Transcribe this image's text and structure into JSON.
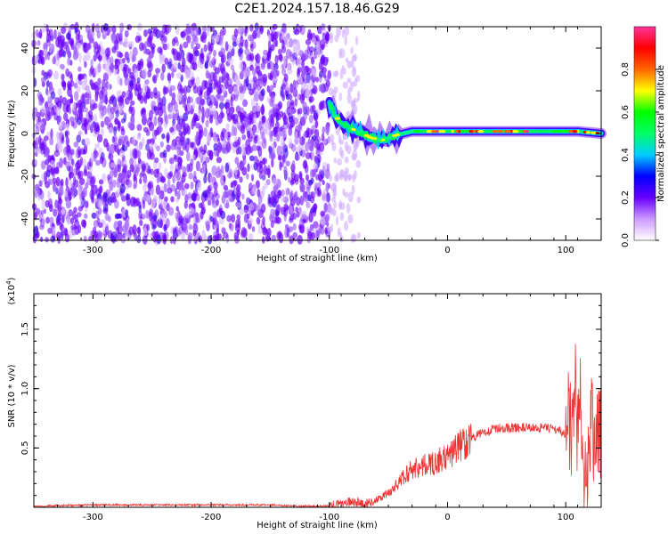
{
  "title": "C2E1.2024.157.18.46.G29",
  "chart_data": [
    {
      "type": "heatmap",
      "xlabel": "Height of straight line (km)",
      "ylabel": "Frequency (Hz)",
      "xlim": [
        -350,
        130
      ],
      "ylim": [
        -50,
        50
      ],
      "xticks": [
        -300,
        -200,
        -100,
        0,
        100
      ],
      "yticks": [
        -40,
        -20,
        0,
        20,
        40
      ],
      "colorbar": {
        "label": "Normalized spectral amplitude",
        "range": [
          0.0,
          1.0
        ],
        "ticks": [
          0.0,
          0.2,
          0.4,
          0.6,
          0.8
        ],
        "tick_labels": [
          "0.0",
          "0.2",
          "0.4",
          "0.6",
          "0.8"
        ],
        "colormap": [
          "#ffffff",
          "#cc99ff",
          "#6600ff",
          "#0000ff",
          "#00ccff",
          "#00ff66",
          "#00ff00",
          "#ffff00",
          "#ff6600",
          "#ff0000",
          "#ff3399"
        ]
      },
      "regions": [
        {
          "x_range": [
            -350,
            -100
          ],
          "f_range": [
            -50,
            50
          ],
          "amplitude": [
            0.0,
            0.15
          ],
          "description_level": "noise"
        },
        {
          "x_range": [
            -100,
            -75
          ],
          "f_range": [
            -50,
            50
          ],
          "amplitude": [
            0.0,
            0.05
          ],
          "description_level": "sparse"
        },
        {
          "x_range": [
            -100,
            130
          ],
          "f_range": [
            -5,
            5
          ],
          "amplitude": [
            0.3,
            1.0
          ],
          "description_level": "carrier"
        }
      ],
      "carrier_center_hz": [
        {
          "x": -100,
          "f": 14
        },
        {
          "x": -95,
          "f": 8
        },
        {
          "x": -85,
          "f": 3
        },
        {
          "x": -75,
          "f": 1
        },
        {
          "x": -65,
          "f": -2
        },
        {
          "x": -55,
          "f": -3
        },
        {
          "x": -45,
          "f": -1
        },
        {
          "x": -30,
          "f": 1
        },
        {
          "x": -15,
          "f": 1
        },
        {
          "x": 0,
          "f": 1
        },
        {
          "x": 30,
          "f": 1
        },
        {
          "x": 60,
          "f": 1
        },
        {
          "x": 90,
          "f": 1
        },
        {
          "x": 110,
          "f": 1
        },
        {
          "x": 130,
          "f": 0
        }
      ],
      "color_note": "line color #ff0000"
    },
    {
      "type": "line",
      "xlabel": "Height of straight line (km)",
      "ylabel": "SNR (10 * v/v)",
      "yscale_label": "(x10",
      "yscale_exp": "4",
      "yscale_close": ")",
      "xlim": [
        -350,
        130
      ],
      "ylim": [
        0,
        1.8
      ],
      "xticks": [
        -300,
        -200,
        -100,
        0,
        100
      ],
      "yticks": [
        0.5,
        1.0,
        1.5
      ],
      "ytick_labels": [
        "0.5",
        "1.0",
        "1.5"
      ],
      "series": [
        {
          "color": "#ee3333",
          "x": [
            -350,
            -300,
            -250,
            -200,
            -150,
            -120,
            -100,
            -90,
            -80,
            -70,
            -60,
            -50,
            -40,
            -30,
            -20,
            -10,
            0,
            10,
            20,
            30,
            40,
            50,
            60,
            70,
            80,
            90,
            95,
            100,
            105,
            108,
            110,
            112,
            115,
            120,
            125,
            130
          ],
          "y": [
            0.01,
            0.02,
            0.02,
            0.02,
            0.02,
            0.01,
            0.01,
            0.03,
            0.05,
            0.03,
            0.06,
            0.12,
            0.22,
            0.33,
            0.35,
            0.38,
            0.42,
            0.52,
            0.58,
            0.63,
            0.66,
            0.67,
            0.67,
            0.67,
            0.67,
            0.66,
            0.65,
            0.6,
            0.5,
            0.9,
            0.3,
            0.8,
            0.2,
            0.62,
            0.64,
            0.64
          ]
        }
      ]
    }
  ]
}
